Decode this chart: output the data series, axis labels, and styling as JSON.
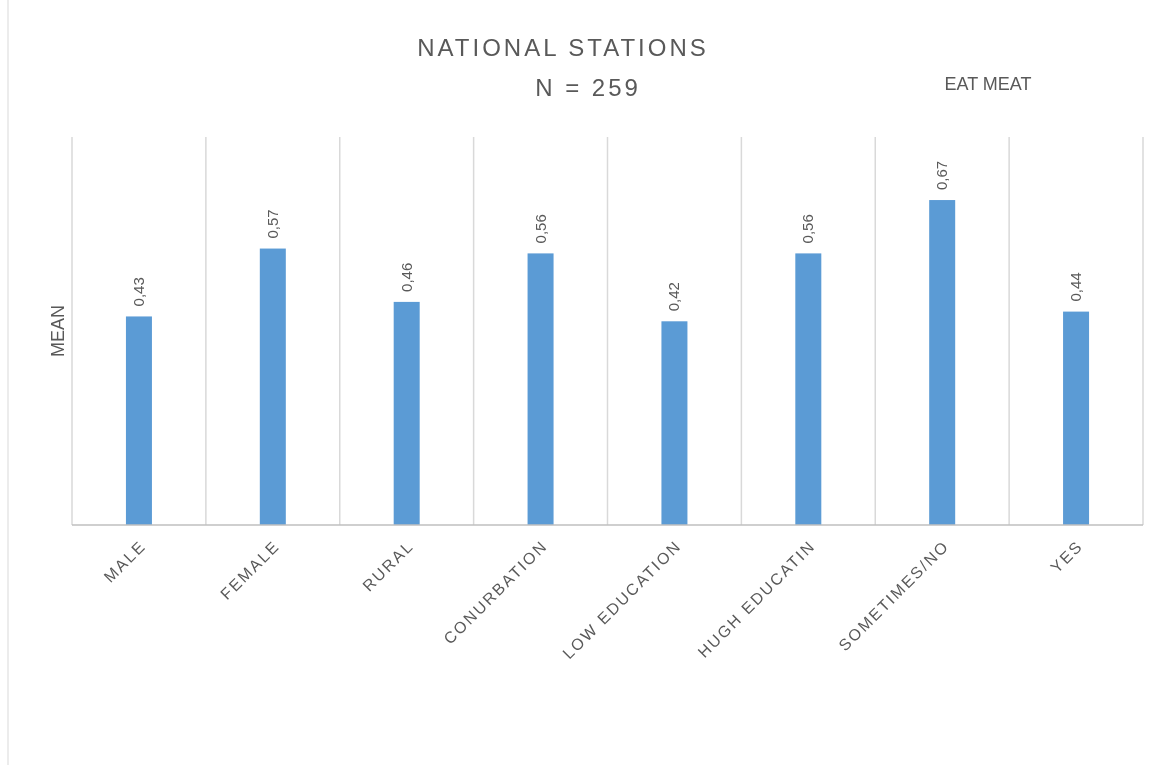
{
  "chart_data": {
    "type": "bar",
    "title": "NATIONAL STATIONS",
    "subtitle": "N = 259",
    "ylabel": "MEAN",
    "annotations": [
      "EAT MEAT"
    ],
    "categories": [
      "MALE",
      "FEMALE",
      "RURAL",
      "CONURBATION",
      "LOW EDUCATION",
      "HUGH EDUCATIN",
      "SOMETIMES/NO",
      "YES"
    ],
    "values": [
      0.43,
      0.57,
      0.46,
      0.56,
      0.42,
      0.56,
      0.67,
      0.44
    ],
    "value_labels": [
      "0,43",
      "0,57",
      "0,46",
      "0,56",
      "0,42",
      "0,56",
      "0,67",
      "0,44"
    ],
    "color": "#5b9bd5",
    "ylim": [
      0,
      0.8
    ],
    "tick_labels": "x",
    "grid": "x"
  }
}
